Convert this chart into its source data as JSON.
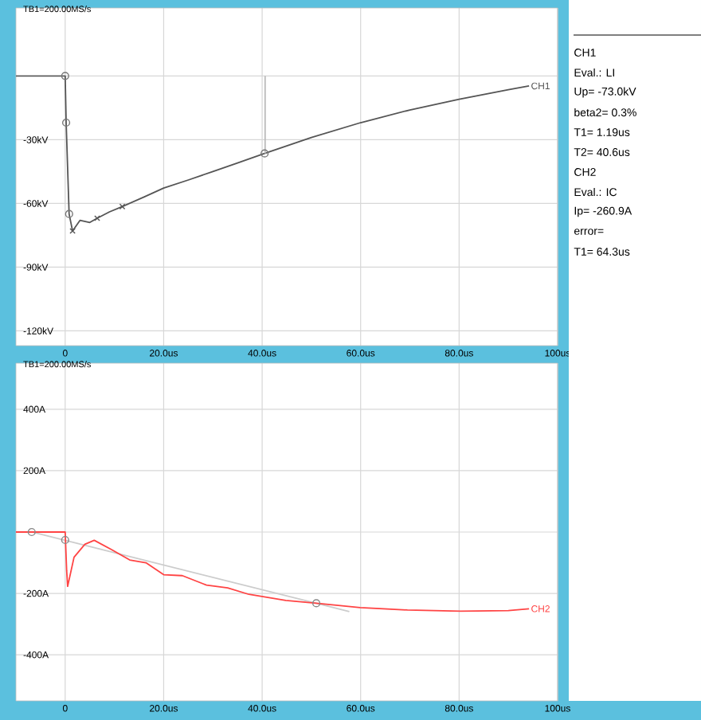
{
  "chart_data": [
    {
      "type": "line",
      "title": "TB1=200.00MS/s",
      "xlim": [
        -10,
        100
      ],
      "ylim": [
        -127,
        32
      ],
      "xticks": [
        0,
        {
          "value": 20,
          "label": "20.0us"
        },
        {
          "value": 40,
          "label": "40.0us"
        },
        {
          "value": 60,
          "label": "60.0us"
        },
        {
          "value": 80,
          "label": "80.0us"
        },
        {
          "value": 100,
          "label": "100us"
        }
      ],
      "yticks": [
        {
          "value": 0,
          "label": null
        },
        {
          "value": -30,
          "label": "-30kV"
        },
        {
          "value": -60,
          "label": "-60kV"
        },
        {
          "value": -90,
          "label": "-90kV"
        },
        {
          "value": -120,
          "label": "-120kV"
        }
      ],
      "grid": true,
      "series": [
        {
          "name": "CH1",
          "color": "#555555",
          "marker": "none",
          "x": [
            -10,
            0,
            0.2,
            0.8,
            1.5,
            3,
            5,
            6.5,
            9,
            11.6,
            16,
            20,
            25,
            30,
            35,
            40.5,
            50,
            60,
            70,
            80,
            90,
            94.2
          ],
          "values": [
            0,
            0,
            -22,
            -65,
            -73,
            -68,
            -69,
            -67,
            -64,
            -61.5,
            -57,
            -52.8,
            -49,
            -45,
            -41,
            -36.5,
            -29,
            -22,
            -16,
            -11,
            -6.5,
            -4.7
          ]
        },
        {
          "color": "#bbbbbb",
          "marker": "none",
          "x": [
            40.6,
            40.6
          ],
          "values": [
            0,
            -36.5
          ]
        },
        {
          "type": "scatter",
          "color": "#777777",
          "marker": "circle",
          "x": [
            0,
            0.2,
            0.8,
            40.5
          ],
          "values": [
            0,
            -22,
            -65,
            -36.5
          ]
        },
        {
          "type": "scatter",
          "color": "#555555",
          "marker": "cross",
          "x": [
            1.5,
            6.5,
            11.6
          ],
          "values": [
            -73,
            -67,
            -61.5
          ]
        }
      ]
    },
    {
      "type": "line",
      "title": "TB1=200.00MS/s",
      "xlim": [
        -10,
        100
      ],
      "ylim": [
        -550,
        550
      ],
      "xticks": [
        0,
        {
          "value": 20,
          "label": "20.0us"
        },
        {
          "value": 40,
          "label": "40.0us"
        },
        {
          "value": 60,
          "label": "60.0us"
        },
        {
          "value": 80,
          "label": "80.0us"
        },
        {
          "value": 100,
          "label": "100us"
        }
      ],
      "yticks": [
        {
          "value": 400,
          "label": "400A"
        },
        {
          "value": 200,
          "label": "200A"
        },
        {
          "value": 0,
          "label": null
        },
        {
          "value": -200,
          "label": "-200A"
        },
        {
          "value": -400,
          "label": "-400A"
        }
      ],
      "grid": true,
      "series": [
        {
          "color": "#cccccc",
          "marker": "none",
          "x": [
            -6.8,
            57.7
          ],
          "values": [
            0,
            -259
          ]
        },
        {
          "name": "CH2",
          "color": "#ff4444",
          "marker": "none",
          "x": [
            -10,
            0,
            0.3,
            0.5,
            1.8,
            4,
            5.9,
            9.4,
            13.1,
            16.4,
            20,
            23.8,
            28.7,
            33,
            37.3,
            44.8,
            51,
            59.9,
            69.5,
            80.3,
            90,
            94.2
          ],
          "values": [
            0,
            0,
            -125,
            -177,
            -82,
            -40,
            -27,
            -57,
            -91,
            -100,
            -139,
            -142,
            -173,
            -182,
            -203,
            -223,
            -232,
            -246,
            -254,
            -258,
            -256,
            -250
          ]
        },
        {
          "type": "scatter",
          "color": "#888888",
          "marker": "circle",
          "x": [
            -6.8,
            0,
            51
          ],
          "values": [
            0,
            -26,
            -232
          ]
        }
      ]
    },
    {
      "type": "other",
      "annotations": [
        "CH1",
        "Eval.: LI",
        "Up= -73.0kV",
        "beta2= 0.3%",
        "T1= 1.19us",
        "T2= 40.6us",
        "CH2",
        "Eval.: IC",
        "Ip= -260.9A",
        "error=",
        "T1= 64.3us"
      ]
    }
  ]
}
